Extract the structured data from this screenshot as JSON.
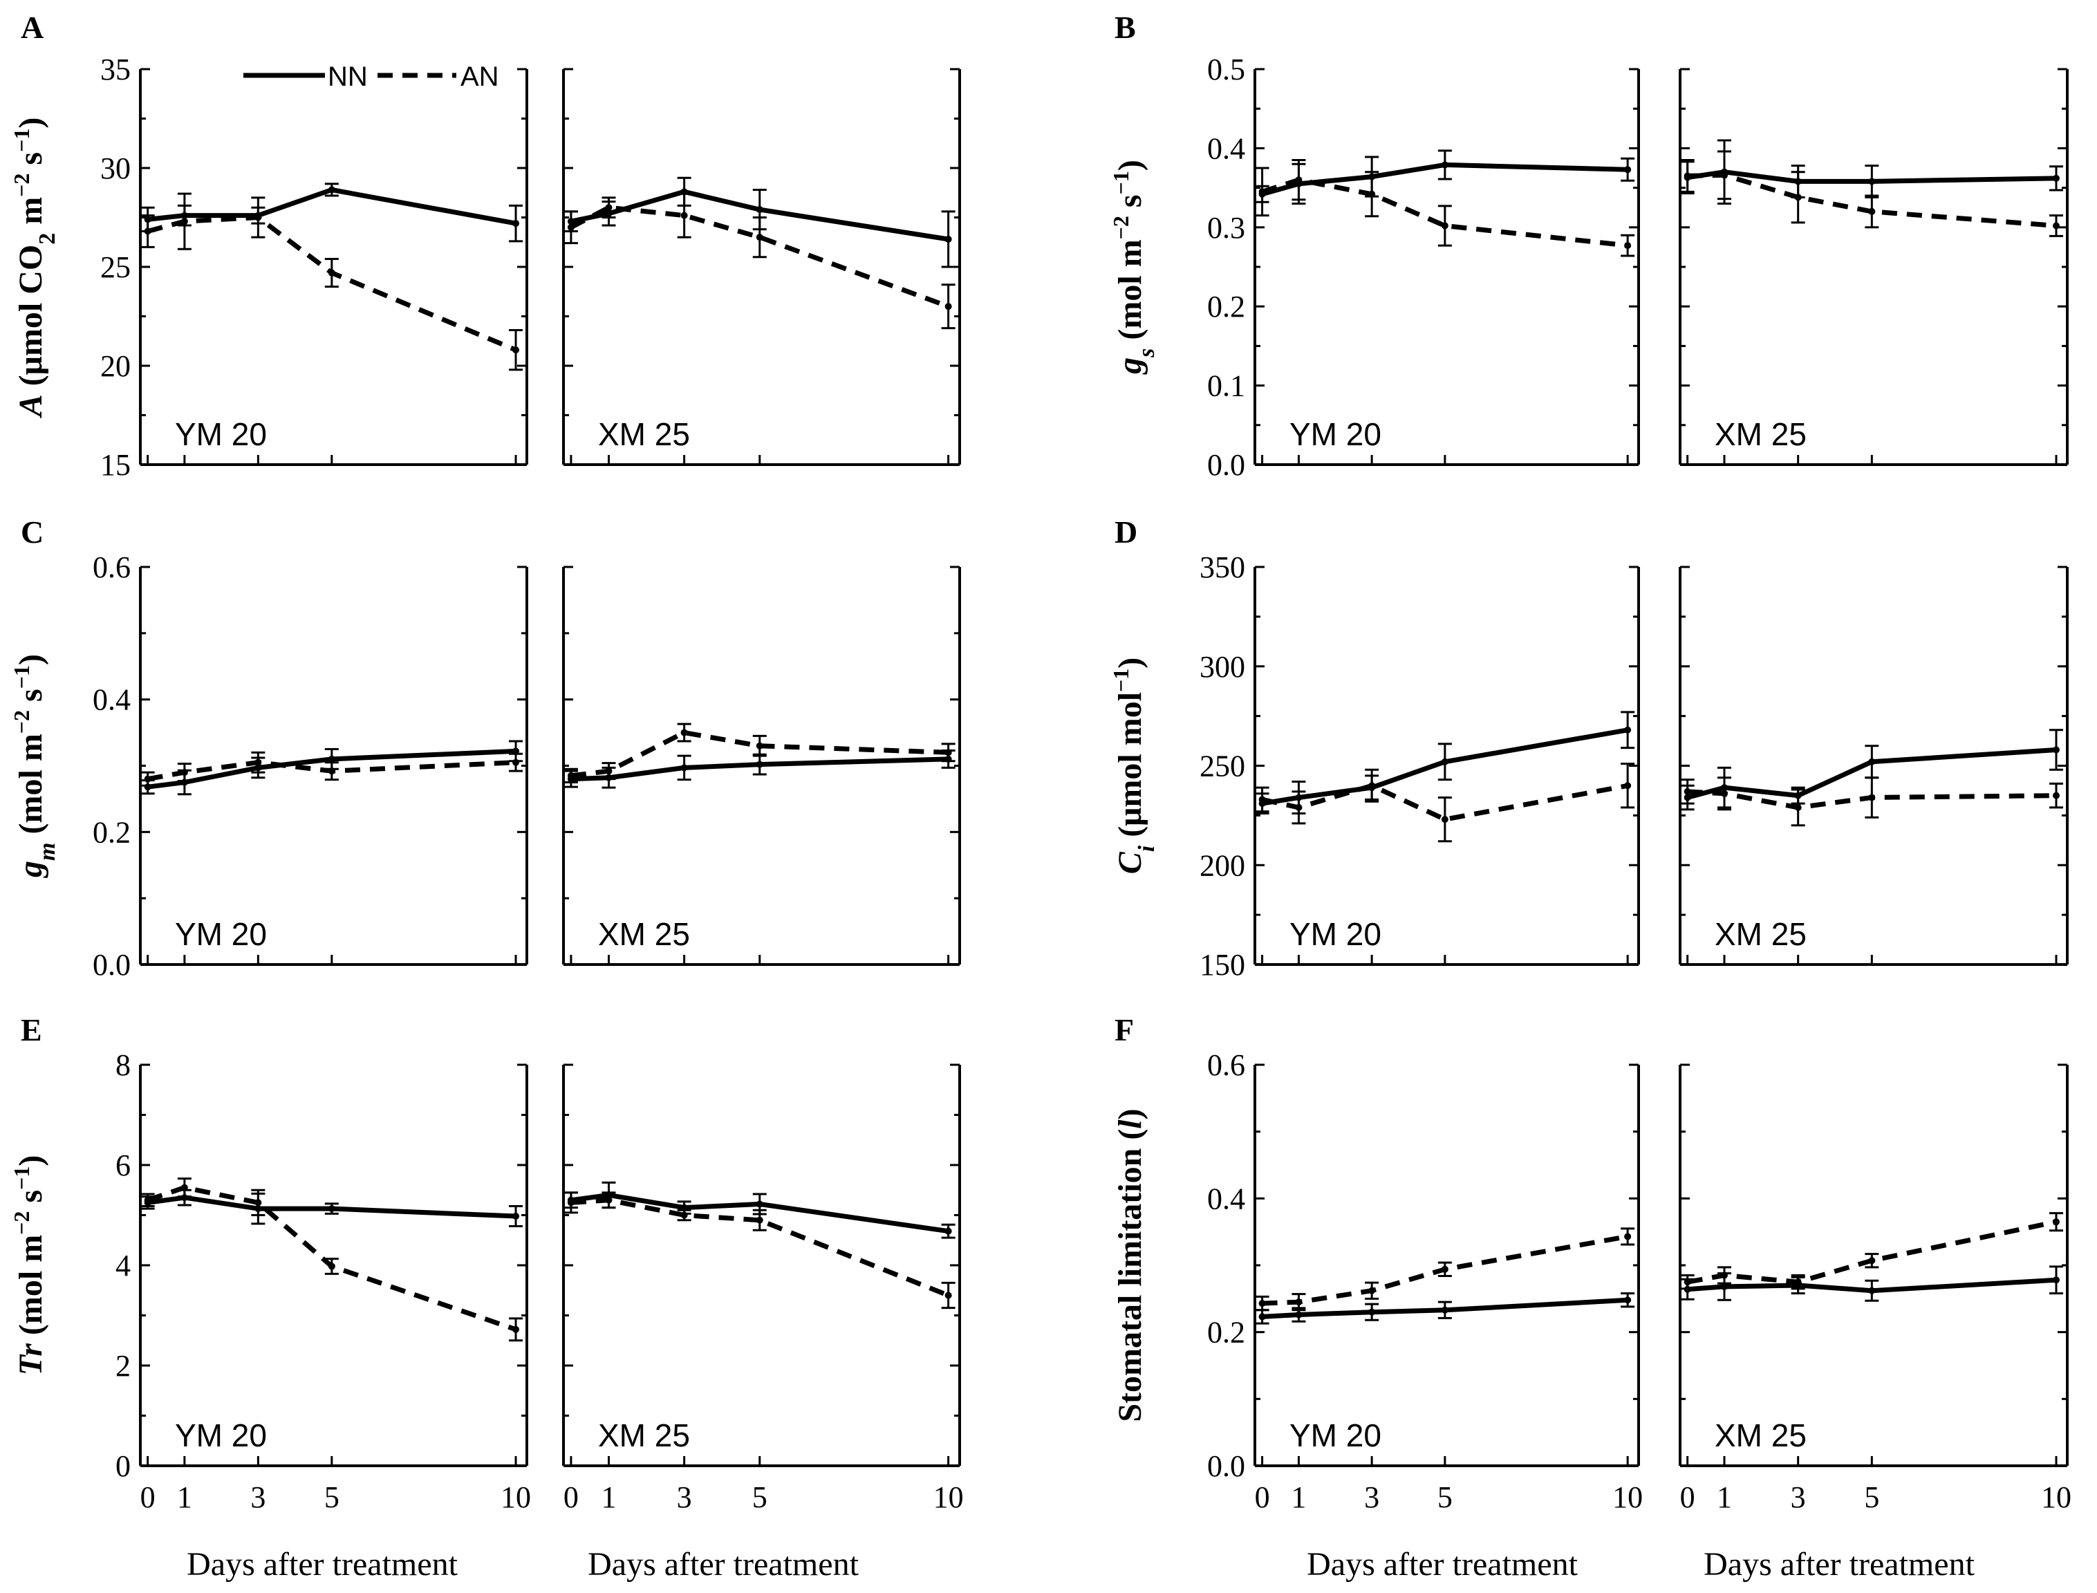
{
  "legend": {
    "nn_label": "NN",
    "an_label": "AN"
  },
  "x_label": "Days after treatment",
  "chart_data": [
    {
      "type": "line",
      "panel": "A",
      "ylabel_parts": [
        "A",
        " (μmol CO",
        "2",
        " m",
        "−2",
        " s",
        "−1",
        ")"
      ],
      "ylim": [
        15,
        35
      ],
      "yticks": [
        15,
        20,
        25,
        30,
        35
      ],
      "ytick_labels": [
        "15",
        "20",
        "25",
        "30",
        "35"
      ],
      "x": [
        0,
        1,
        3,
        5,
        10
      ],
      "xtick_labels": [
        "0",
        "1",
        "3",
        "5",
        "10"
      ],
      "cultivars": [
        {
          "name": "YM 20",
          "series": [
            {
              "name": "NN",
              "values": [
                27.4,
                27.6,
                27.6,
                28.9,
                27.2
              ],
              "errors": [
                0.6,
                0.5,
                0.4,
                0.3,
                0.9
              ]
            },
            {
              "name": "AN",
              "values": [
                26.8,
                27.3,
                27.5,
                24.7,
                20.8
              ],
              "errors": [
                0.8,
                1.4,
                1.0,
                0.7,
                1.0
              ]
            }
          ]
        },
        {
          "name": "XM 25",
          "series": [
            {
              "name": "NN",
              "values": [
                27.3,
                27.7,
                28.8,
                27.9,
                26.4
              ],
              "errors": [
                0.5,
                0.6,
                0.7,
                1.0,
                1.4
              ]
            },
            {
              "name": "AN",
              "values": [
                27.0,
                28.0,
                27.6,
                26.5,
                23.0
              ],
              "errors": [
                0.8,
                0.5,
                1.1,
                1.0,
                1.1
              ]
            }
          ]
        }
      ]
    },
    {
      "type": "line",
      "panel": "B",
      "ylabel_parts": [
        "g",
        "s",
        " (mol m",
        "−2",
        " s",
        "−1",
        ")"
      ],
      "ylim": [
        0.0,
        0.5
      ],
      "yticks": [
        0.0,
        0.1,
        0.2,
        0.3,
        0.4,
        0.5
      ],
      "ytick_labels": [
        "0.0",
        "0.1",
        "0.2",
        "0.3",
        "0.4",
        "0.5"
      ],
      "x": [
        0,
        1,
        3,
        5,
        10
      ],
      "xtick_labels": [
        "0",
        "1",
        "3",
        "5",
        "10"
      ],
      "cultivars": [
        {
          "name": "YM 20",
          "series": [
            {
              "name": "NN",
              "values": [
                0.342,
                0.355,
                0.364,
                0.379,
                0.373
              ],
              "errors": [
                0.01,
                0.025,
                0.025,
                0.018,
                0.014
              ]
            },
            {
              "name": "AN",
              "values": [
                0.345,
                0.36,
                0.342,
                0.302,
                0.277
              ],
              "errors": [
                0.03,
                0.025,
                0.028,
                0.025,
                0.013
              ]
            }
          ]
        },
        {
          "name": "XM 25",
          "series": [
            {
              "name": "NN",
              "values": [
                0.363,
                0.37,
                0.358,
                0.358,
                0.362
              ],
              "errors": [
                0.02,
                0.04,
                0.02,
                0.02,
                0.015
              ]
            },
            {
              "name": "AN",
              "values": [
                0.365,
                0.366,
                0.338,
                0.32,
                0.302
              ],
              "errors": [
                0.02,
                0.03,
                0.032,
                0.02,
                0.013
              ]
            }
          ]
        }
      ]
    },
    {
      "type": "line",
      "panel": "C",
      "ylabel_parts": [
        "g",
        "m",
        " (mol m",
        "−2",
        " s",
        "−1",
        ")"
      ],
      "ylim": [
        0.0,
        0.6
      ],
      "yticks": [
        0.0,
        0.2,
        0.4,
        0.6
      ],
      "ytick_labels": [
        "0.0",
        "0.2",
        "0.4",
        "0.6"
      ],
      "x": [
        0,
        1,
        3,
        5,
        10
      ],
      "xtick_labels": [
        "0",
        "1",
        "3",
        "5",
        "10"
      ],
      "cultivars": [
        {
          "name": "YM 20",
          "series": [
            {
              "name": "NN",
              "values": [
                0.268,
                0.275,
                0.297,
                0.31,
                0.322
              ],
              "errors": [
                0.01,
                0.018,
                0.015,
                0.015,
                0.015
              ]
            },
            {
              "name": "AN",
              "values": [
                0.28,
                0.29,
                0.305,
                0.292,
                0.305
              ],
              "errors": [
                0.01,
                0.013,
                0.015,
                0.013,
                0.013
              ]
            }
          ]
        },
        {
          "name": "XM 25",
          "series": [
            {
              "name": "NN",
              "values": [
                0.28,
                0.282,
                0.297,
                0.302,
                0.31
              ],
              "errors": [
                0.012,
                0.015,
                0.018,
                0.015,
                0.013
              ]
            },
            {
              "name": "AN",
              "values": [
                0.285,
                0.292,
                0.35,
                0.33,
                0.32
              ],
              "errors": [
                0.01,
                0.012,
                0.013,
                0.015,
                0.013
              ]
            }
          ]
        }
      ]
    },
    {
      "type": "line",
      "panel": "D",
      "ylabel_parts": [
        "C",
        "i",
        " (μmol mol",
        "−1",
        ")"
      ],
      "ylim": [
        150,
        350
      ],
      "yticks": [
        150,
        200,
        250,
        300,
        350
      ],
      "ytick_labels": [
        "150",
        "200",
        "250",
        "300",
        "350"
      ],
      "x": [
        0,
        1,
        3,
        5,
        10
      ],
      "xtick_labels": [
        "0",
        "1",
        "3",
        "5",
        "10"
      ],
      "cultivars": [
        {
          "name": "YM 20",
          "series": [
            {
              "name": "NN",
              "values": [
                231,
                234,
                239,
                252,
                268
              ],
              "errors": [
                5,
                8,
                6,
                9,
                9
              ]
            },
            {
              "name": "AN",
              "values": [
                233,
                229,
                240,
                223,
                240
              ],
              "errors": [
                6,
                8,
                8,
                11,
                11
              ]
            }
          ]
        },
        {
          "name": "XM 25",
          "series": [
            {
              "name": "NN",
              "values": [
                234,
                239,
                235,
                252,
                258
              ],
              "errors": [
                6,
                10,
                4,
                8,
                10
              ]
            },
            {
              "name": "AN",
              "values": [
                237,
                236,
                229,
                234,
                235
              ],
              "errors": [
                6,
                8,
                9,
                10,
                6
              ]
            }
          ]
        }
      ]
    },
    {
      "type": "line",
      "panel": "E",
      "ylabel_parts": [
        "Tr",
        " (mol m",
        "−2",
        " s",
        "−1",
        ")"
      ],
      "ylim": [
        0,
        8
      ],
      "yticks": [
        0,
        2,
        4,
        6,
        8
      ],
      "ytick_labels": [
        "0",
        "2",
        "4",
        "6",
        "8"
      ],
      "x": [
        0,
        1,
        3,
        5,
        10
      ],
      "xtick_labels": [
        "0",
        "1",
        "3",
        "5",
        "10"
      ],
      "cultivars": [
        {
          "name": "YM 20",
          "series": [
            {
              "name": "NN",
              "values": [
                5.25,
                5.35,
                5.13,
                5.13,
                4.98
              ],
              "errors": [
                0.12,
                0.15,
                0.3,
                0.1,
                0.2
              ]
            },
            {
              "name": "AN",
              "values": [
                5.3,
                5.55,
                5.25,
                3.98,
                2.72
              ],
              "errors": [
                0.12,
                0.18,
                0.25,
                0.15,
                0.22
              ]
            }
          ]
        },
        {
          "name": "XM 25",
          "series": [
            {
              "name": "NN",
              "values": [
                5.3,
                5.4,
                5.15,
                5.22,
                4.68
              ],
              "errors": [
                0.15,
                0.25,
                0.12,
                0.2,
                0.13
              ]
            },
            {
              "name": "AN",
              "values": [
                5.25,
                5.3,
                5.0,
                4.9,
                3.4
              ],
              "errors": [
                0.2,
                0.15,
                0.1,
                0.2,
                0.25
              ]
            }
          ]
        }
      ]
    },
    {
      "type": "line",
      "panel": "F",
      "ylabel_parts": [
        "Stomatal limitation (",
        "l",
        ")"
      ],
      "ylim": [
        0.0,
        0.6
      ],
      "yticks": [
        0.0,
        0.2,
        0.4,
        0.6
      ],
      "ytick_labels": [
        "0.0",
        "0.2",
        "0.4",
        "0.6"
      ],
      "x": [
        0,
        1,
        3,
        5,
        10
      ],
      "xtick_labels": [
        "0",
        "1",
        "3",
        "5",
        "10"
      ],
      "cultivars": [
        {
          "name": "YM 20",
          "series": [
            {
              "name": "NN",
              "values": [
                0.223,
                0.226,
                0.23,
                0.233,
                0.248
              ],
              "errors": [
                0.01,
                0.01,
                0.012,
                0.012,
                0.01
              ]
            },
            {
              "name": "AN",
              "values": [
                0.243,
                0.245,
                0.262,
                0.294,
                0.343
              ],
              "errors": [
                0.01,
                0.012,
                0.012,
                0.01,
                0.012
              ]
            }
          ]
        },
        {
          "name": "XM 25",
          "series": [
            {
              "name": "NN",
              "values": [
                0.264,
                0.268,
                0.27,
                0.262,
                0.278
              ],
              "errors": [
                0.015,
                0.02,
                0.012,
                0.015,
                0.02
              ]
            },
            {
              "name": "AN",
              "values": [
                0.275,
                0.285,
                0.275,
                0.307,
                0.365
              ],
              "errors": [
                0.01,
                0.012,
                0.01,
                0.01,
                0.013
              ]
            }
          ]
        }
      ]
    }
  ]
}
